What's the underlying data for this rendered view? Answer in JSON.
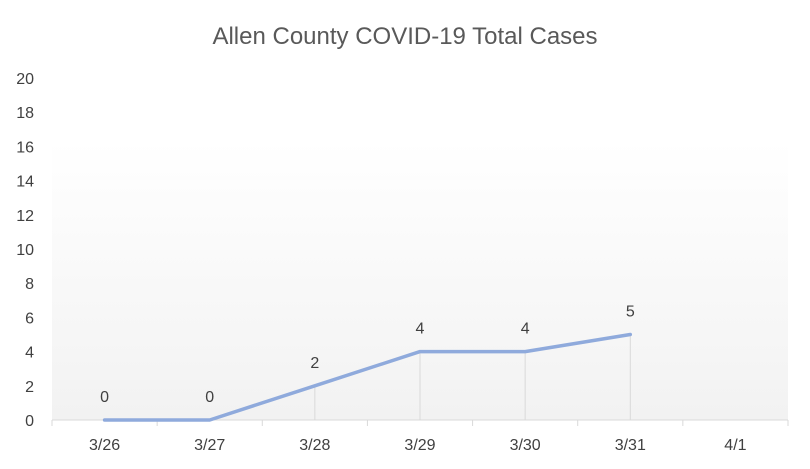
{
  "chart_data": {
    "type": "line",
    "title": "Allen County COVID-19 Total Cases",
    "xlabel": "",
    "ylabel": "",
    "categories": [
      "3/26",
      "3/27",
      "3/28",
      "3/29",
      "3/30",
      "3/31",
      "4/1"
    ],
    "series": [
      {
        "values": [
          0,
          0,
          2,
          4,
          4,
          5,
          null
        ],
        "color": "#8faadc"
      }
    ],
    "data_labels": [
      "0",
      "0",
      "2",
      "4",
      "4",
      "5",
      ""
    ],
    "ylim": [
      0,
      20
    ],
    "y_ticks": [
      "0",
      "2",
      "4",
      "6",
      "8",
      "10",
      "12",
      "14",
      "16",
      "18",
      "20"
    ],
    "y_step": 2,
    "grid": "vertical drop lines from points",
    "legend": "none",
    "axis_color": "#d9d9d9",
    "drop_line_color": "#d9d9d9",
    "background_gradient": [
      "#ffffff",
      "#f2f2f2"
    ]
  }
}
